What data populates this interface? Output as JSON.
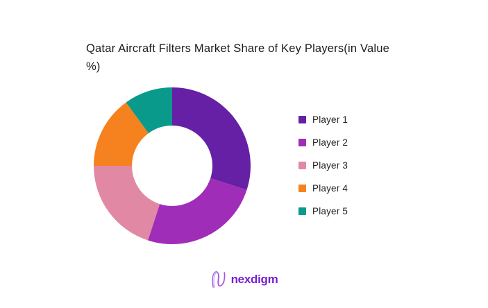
{
  "page": {
    "background_color": "#ffffff"
  },
  "chart_data": {
    "type": "donut",
    "title": "Qatar Aircraft Filters Market Share of Key Players(in Value %)",
    "categories": [
      "Player 1",
      "Player 2",
      "Player 3",
      "Player 4",
      "Player 5"
    ],
    "values": [
      30,
      25,
      20,
      15,
      10
    ],
    "unit": "percent",
    "colors": [
      "#6620A6",
      "#A02DB8",
      "#E189A4",
      "#F5821F",
      "#0A9A8C"
    ],
    "legend_position": "right",
    "start_angle_deg": 0,
    "direction": "clockwise",
    "inner_radius_ratio": 0.513,
    "title_color": "#1c1c1c",
    "legend_text_color": "#212121"
  },
  "branding": {
    "logo_text": "nexdigm",
    "logo_color": "#771FD2"
  }
}
